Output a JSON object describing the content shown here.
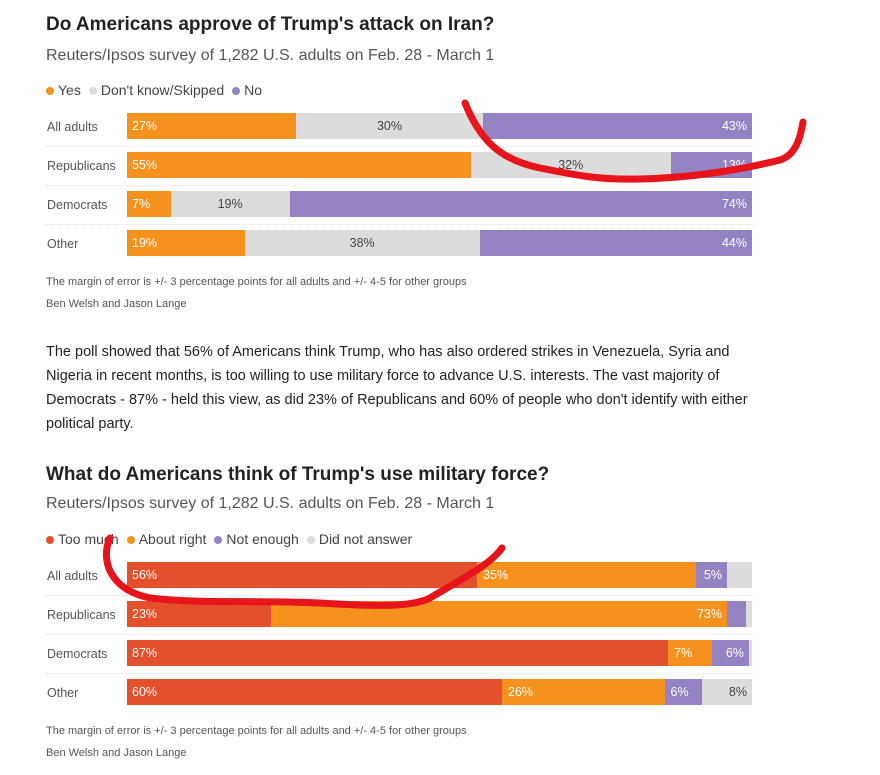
{
  "chart_data": [
    {
      "type": "bar",
      "stacked": true,
      "orientation": "horizontal",
      "title": "Do Americans approve of Trump's attack on Iran?",
      "subtitle": "Reuters/Ipsos survey of 1,282 U.S. adults on Feb. 28 - March 1",
      "legend": [
        {
          "name": "Yes",
          "color": "#f5921e"
        },
        {
          "name": "Don't know/Skipped",
          "color": "#dcdcdc"
        },
        {
          "name": "No",
          "color": "#9582c2"
        }
      ],
      "categories": [
        "All adults",
        "Republicans",
        "Democrats",
        "Other"
      ],
      "series": [
        {
          "name": "Yes",
          "values": [
            27,
            55,
            7,
            19
          ]
        },
        {
          "name": "Don't know/Skipped",
          "values": [
            30,
            32,
            19,
            38
          ]
        },
        {
          "name": "No",
          "values": [
            43,
            13,
            74,
            44
          ]
        }
      ],
      "note": "The margin of error is +/- 3 percentage points for all adults and +/- 4-5 for other groups",
      "credit": "Ben Welsh and Jason Lange",
      "xlim": [
        0,
        100
      ]
    },
    {
      "type": "bar",
      "stacked": true,
      "orientation": "horizontal",
      "title": "What do Americans think of Trump's use military force?",
      "subtitle": "Reuters/Ipsos survey of 1,282 U.S. adults on Feb. 28 - March 1",
      "legend": [
        {
          "name": "Too much",
          "color": "#e3502b"
        },
        {
          "name": "About right",
          "color": "#f5921e"
        },
        {
          "name": "Not enough",
          "color": "#9582c2"
        },
        {
          "name": "Did not answer",
          "color": "#dcdcdc"
        }
      ],
      "categories": [
        "All adults",
        "Republicans",
        "Democrats",
        "Other"
      ],
      "series": [
        {
          "name": "Too much",
          "values": [
            56,
            23,
            87,
            60
          ]
        },
        {
          "name": "About right",
          "values": [
            35,
            73,
            7,
            26
          ]
        },
        {
          "name": "Not enough",
          "values": [
            5,
            3,
            6,
            6
          ]
        },
        {
          "name": "Did not answer",
          "values": [
            4,
            1,
            0.5,
            8
          ]
        }
      ],
      "note": "The margin of error is +/- 3 percentage points for all adults and +/- 4-5 for other groups",
      "credit": "Ben Welsh and Jason Lange",
      "xlim": [
        0,
        100
      ]
    }
  ],
  "paragraph": "The poll showed that 56% of Americans think Trump, who has also ordered strikes in Venezuela, Syria and Nigeria in recent months, is too willing to use military force to advance U.S. interests. The vast majority of Democrats - 87% - held this view, as did 23% of Republicans and 60% of people who don't identify with either political party."
}
